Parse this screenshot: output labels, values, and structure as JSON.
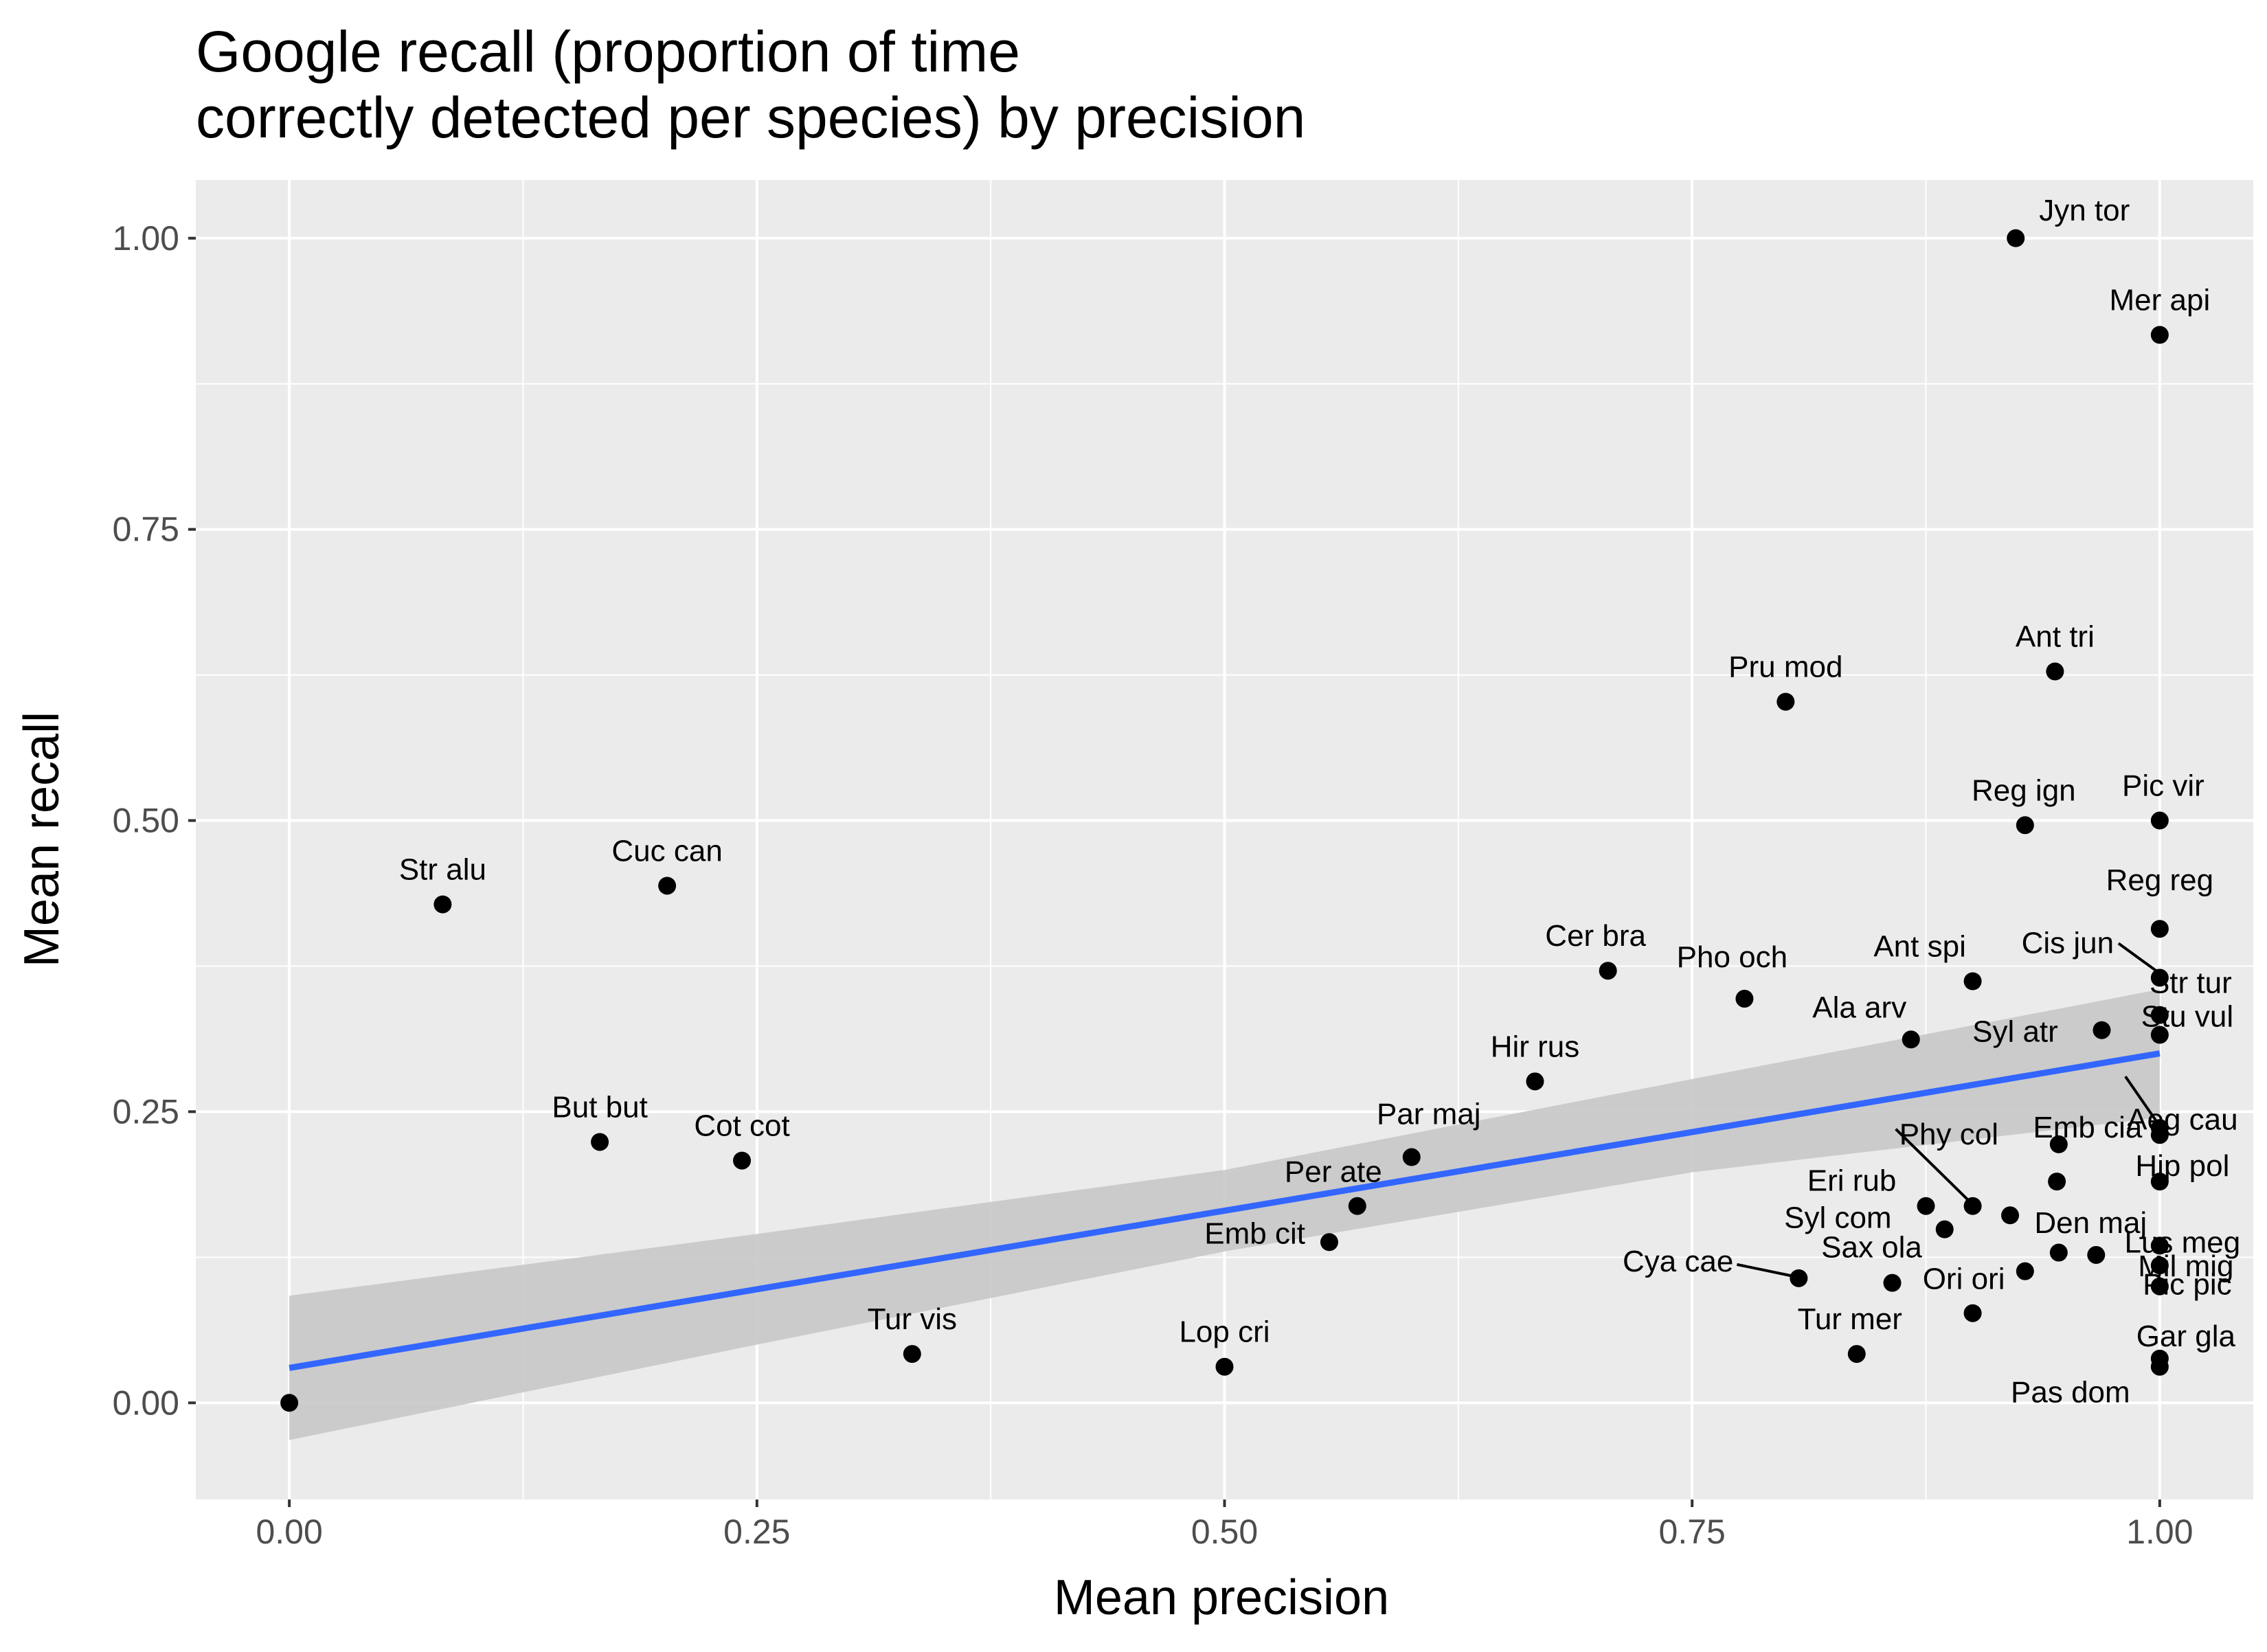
{
  "chart_data": {
    "type": "scatter",
    "title_lines": [
      "Google recall (proportion of time",
      "correctly detected per species) by precision"
    ],
    "xlabel": "Mean precision",
    "ylabel": "Mean recall",
    "xlim": [
      -0.05,
      1.05
    ],
    "ylim": [
      -0.083,
      1.05
    ],
    "xticks": [
      0.0,
      0.25,
      0.5,
      0.75,
      1.0
    ],
    "xtick_labels": [
      "0.00",
      "0.25",
      "0.50",
      "0.75",
      "1.00"
    ],
    "yticks": [
      0.0,
      0.25,
      0.5,
      0.75,
      1.0
    ],
    "ytick_labels": [
      "0.00",
      "0.25",
      "0.50",
      "0.75",
      "1.00"
    ],
    "grid": true,
    "background": "#ebebeb",
    "point_color": "#000000",
    "fit": {
      "method": "linear",
      "intercept": 0.03,
      "slope": 0.27,
      "color": "#3366ff",
      "band_color": "#c8c8c8",
      "band": [
        {
          "x": 0.0,
          "lo": -0.032,
          "hi": 0.092
        },
        {
          "x": 0.25,
          "lo": 0.05,
          "hi": 0.145
        },
        {
          "x": 0.5,
          "lo": 0.13,
          "hi": 0.2
        },
        {
          "x": 0.75,
          "lo": 0.198,
          "hi": 0.278
        },
        {
          "x": 1.0,
          "lo": 0.245,
          "hi": 0.355
        }
      ]
    },
    "points": [
      {
        "label": "Str alu",
        "x": 0.082,
        "y": 0.428
      },
      {
        "label": "Cuc can",
        "x": 0.202,
        "y": 0.444
      },
      {
        "label": "But but",
        "x": 0.166,
        "y": 0.224
      },
      {
        "label": "Cot cot",
        "x": 0.242,
        "y": 0.208
      },
      {
        "label": "Tur vis",
        "x": 0.333,
        "y": 0.042
      },
      {
        "label": "Lop cri",
        "x": 0.5,
        "y": 0.031
      },
      {
        "label": "Emb cit",
        "x": 0.556,
        "y": 0.138
      },
      {
        "label": "Per ate",
        "x": 0.571,
        "y": 0.169
      },
      {
        "label": "Par maj",
        "x": 0.6,
        "y": 0.211
      },
      {
        "label": "Hir rus",
        "x": 0.666,
        "y": 0.276
      },
      {
        "label": "Cer bra",
        "x": 0.705,
        "y": 0.371
      },
      {
        "label": "Pho och",
        "x": 0.778,
        "y": 0.347
      },
      {
        "label": "Pru mod",
        "x": 0.8,
        "y": 0.602
      },
      {
        "label": "Cya cae",
        "x": 0.807,
        "y": 0.107
      },
      {
        "label": "Tur mer",
        "x": 0.838,
        "y": 0.042
      },
      {
        "label": "Sax ola",
        "x": 0.857,
        "y": 0.103
      },
      {
        "label": "Ala arv",
        "x": 0.867,
        "y": 0.312
      },
      {
        "label": "Eri rub",
        "x": 0.875,
        "y": 0.169
      },
      {
        "label": "",
        "x": 0.885,
        "y": 0.149
      },
      {
        "label": "Ant spi",
        "x": 0.9,
        "y": 0.362
      },
      {
        "label": "Syl com",
        "x": 0.9,
        "y": 0.169
      },
      {
        "label": "Ori ori",
        "x": 0.9,
        "y": 0.077
      },
      {
        "label": "",
        "x": 0.92,
        "y": 0.161
      },
      {
        "label": "Jyn tor",
        "x": 0.923,
        "y": 1.0
      },
      {
        "label": "Reg ign",
        "x": 0.928,
        "y": 0.496
      },
      {
        "label": "",
        "x": 0.928,
        "y": 0.113
      },
      {
        "label": "Ant tri",
        "x": 0.944,
        "y": 0.628
      },
      {
        "label": "Phy col",
        "x": 0.946,
        "y": 0.222
      },
      {
        "label": "",
        "x": 0.945,
        "y": 0.19
      },
      {
        "label": "",
        "x": 0.946,
        "y": 0.129
      },
      {
        "label": "Syl atr",
        "x": 0.969,
        "y": 0.32
      },
      {
        "label": "Den maj",
        "x": 0.966,
        "y": 0.127
      },
      {
        "label": "Mer api",
        "x": 1.0,
        "y": 0.917
      },
      {
        "label": "Pic vir",
        "x": 1.0,
        "y": 0.5
      },
      {
        "label": "Reg reg",
        "x": 1.0,
        "y": 0.407
      },
      {
        "label": "Cis jun",
        "x": 1.0,
        "y": 0.365
      },
      {
        "label": "Str tur",
        "x": 1.0,
        "y": 0.333
      },
      {
        "label": "Stu vul",
        "x": 1.0,
        "y": 0.316
      },
      {
        "label": "Emb cia",
        "x": 1.0,
        "y": 0.236
      },
      {
        "label": "Aeg cau",
        "x": 1.0,
        "y": 0.23
      },
      {
        "label": "Hip pol",
        "x": 1.0,
        "y": 0.19
      },
      {
        "label": "Lus meg",
        "x": 1.0,
        "y": 0.135
      },
      {
        "label": "Mil mig",
        "x": 1.0,
        "y": 0.118
      },
      {
        "label": "Pic pic",
        "x": 1.0,
        "y": 0.1
      },
      {
        "label": "Gar gla",
        "x": 1.0,
        "y": 0.038
      },
      {
        "label": "Pas dom",
        "x": 1.0,
        "y": 0.031
      },
      {
        "label": "",
        "x": 0.0,
        "y": 0.0
      }
    ]
  }
}
